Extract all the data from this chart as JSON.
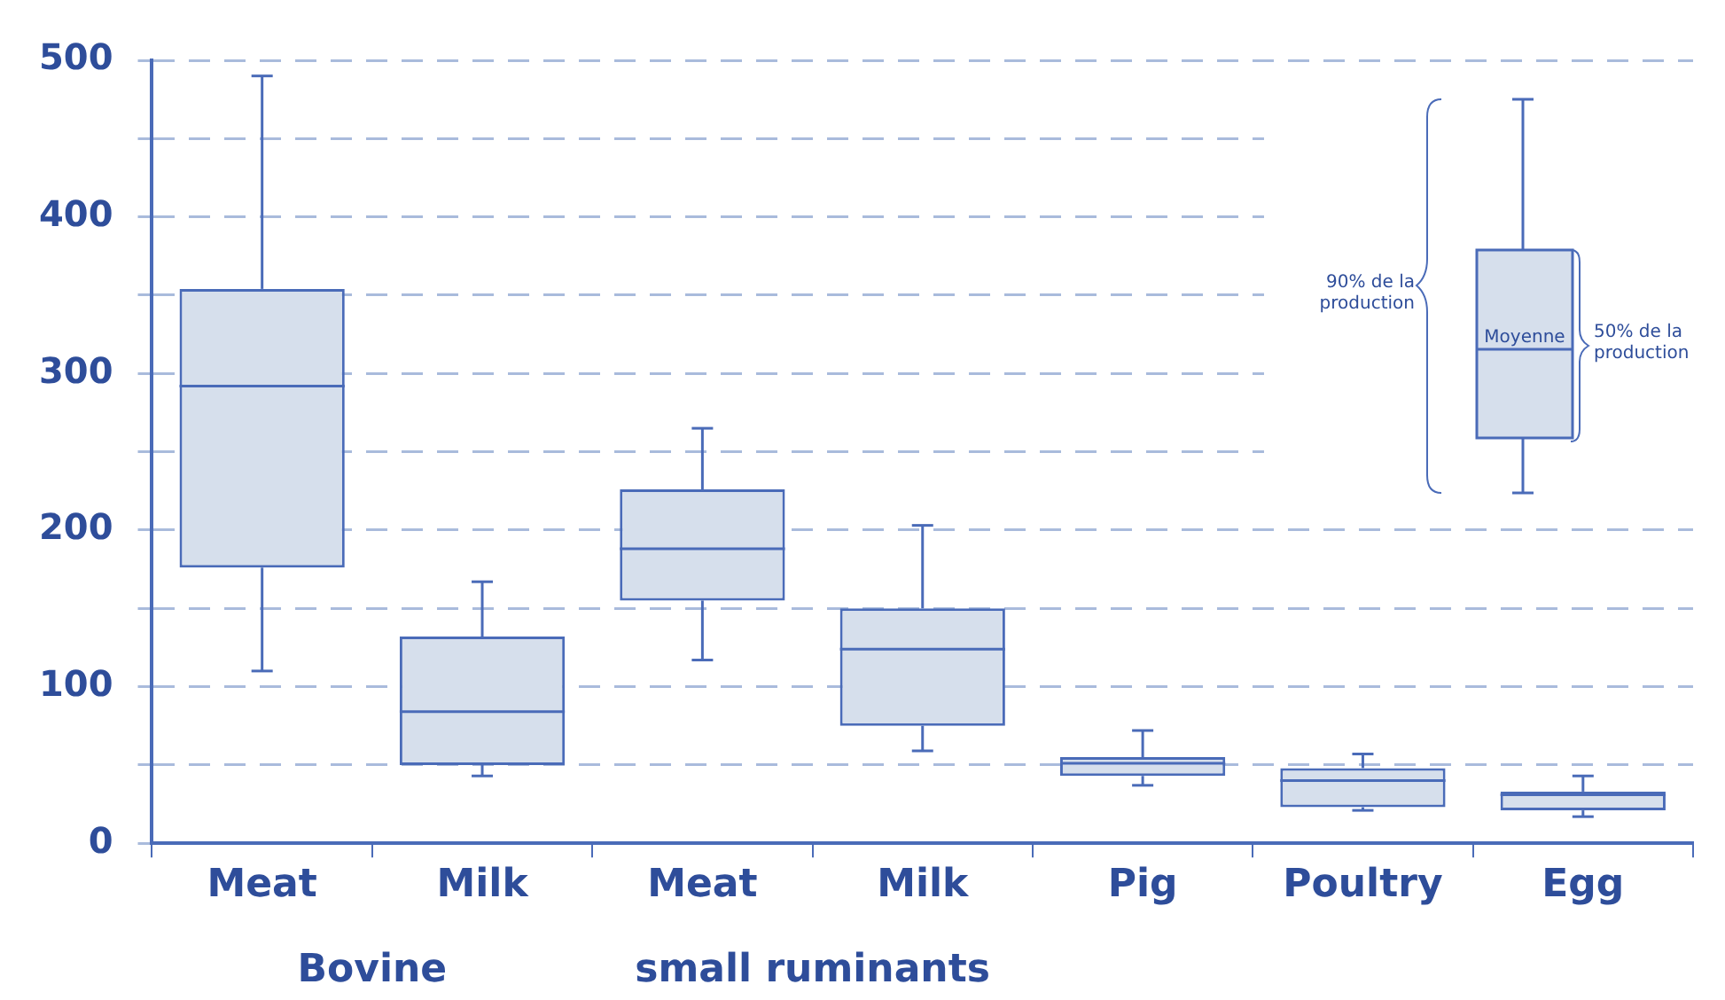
{
  "chart_data": {
    "type": "box",
    "categories": [
      "Meat",
      "Milk",
      "Meat",
      "Milk",
      "Pig",
      "Poultry",
      "Egg"
    ],
    "boxes": [
      {
        "low": 110,
        "q1": 176,
        "median": 292,
        "q3": 354,
        "high": 490
      },
      {
        "low": 43,
        "q1": 50,
        "median": 84,
        "q3": 132,
        "high": 167
      },
      {
        "low": 117,
        "q1": 155,
        "median": 188,
        "q3": 226,
        "high": 265
      },
      {
        "low": 59,
        "q1": 75,
        "median": 124,
        "q3": 150,
        "high": 203
      },
      {
        "low": 37,
        "q1": 43,
        "median": 51,
        "q3": 55,
        "high": 72
      },
      {
        "low": 21,
        "q1": 23,
        "median": 40,
        "q3": 48,
        "high": 57
      },
      {
        "low": 17,
        "q1": 21,
        "median": 31,
        "q3": 33,
        "high": 43
      }
    ],
    "color": "#4a6bb8",
    "ylim": [
      0,
      500
    ],
    "yticks": [
      0,
      {
        "value": 50,
        "label": null
      },
      100,
      {
        "value": 150,
        "label": null
      },
      200,
      {
        "value": 250,
        "label": null
      },
      300,
      {
        "value": 350,
        "label": null
      },
      400,
      {
        "value": 450,
        "label": null
      },
      500
    ],
    "grid": "y",
    "annotations": [
      "Bovine",
      "small ruminants",
      "90% de la production",
      "Moyenne",
      "50% de la production"
    ]
  }
}
